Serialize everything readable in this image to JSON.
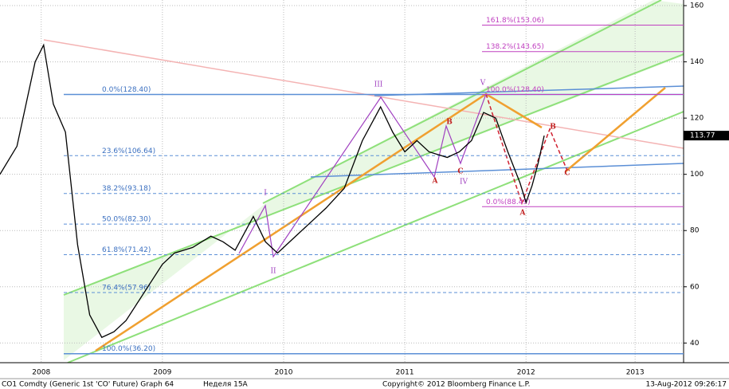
{
  "chart_data": {
    "type": "line",
    "x": [
      2008.16,
      2008.3,
      2008.45,
      2008.52,
      2008.6,
      2008.7,
      2008.8,
      2008.9,
      2009.0,
      2009.1,
      2009.2,
      2009.35,
      2009.5,
      2009.6,
      2009.75,
      2009.9,
      2010.0,
      2010.1,
      2010.25,
      2010.35,
      2010.45,
      2010.6,
      2010.7,
      2010.85,
      2011.0,
      2011.15,
      2011.3,
      2011.4,
      2011.5,
      2011.6,
      2011.7,
      2011.85,
      2011.95,
      2012.05,
      2012.15,
      2012.25,
      2012.35,
      2012.45,
      2012.5,
      2012.55,
      2012.6,
      2012.65
    ],
    "series": [
      {
        "color": "#000000",
        "values": [
          100,
          110,
          140,
          146,
          125,
          115,
          75,
          50,
          42,
          44,
          48,
          58,
          68,
          72,
          74,
          78,
          76,
          73,
          85,
          76,
          72,
          78,
          82,
          88,
          95,
          112,
          124,
          115,
          108,
          112,
          108,
          106,
          108,
          112,
          122,
          120,
          108,
          97,
          90,
          96,
          104,
          113.77
        ]
      }
    ],
    "last_price_label": "113.77",
    "xlim": [
      2008.16,
      2013.8
    ],
    "xticks": [
      {
        "value": 2008.5,
        "label": "2008"
      },
      {
        "value": 2009.5,
        "label": "2009"
      },
      {
        "value": 2010.5,
        "label": "2010"
      },
      {
        "value": 2011.5,
        "label": "2011"
      },
      {
        "value": 2012.5,
        "label": "2012"
      },
      {
        "value": 2013.4,
        "label": "2013"
      }
    ],
    "ylim": [
      33,
      162
    ],
    "yticks": [
      40,
      60,
      80,
      100,
      120,
      140,
      160
    ],
    "grid": true,
    "fib_left": [
      {
        "value": 128.4,
        "label": "0.0%(128.40)"
      },
      {
        "value": 106.64,
        "label": "23.6%(106.64)"
      },
      {
        "value": 93.18,
        "label": "38.2%(93.18)"
      },
      {
        "value": 82.3,
        "label": "50.0%(82.30)"
      },
      {
        "value": 71.42,
        "label": "61.8%(71.42)"
      },
      {
        "value": 57.96,
        "label": "76.4%(57.96)"
      },
      {
        "value": 36.2,
        "label": "100.0%(36.20)"
      }
    ],
    "fib_right": [
      {
        "value": 153.06,
        "label": "161.8%(153.06)"
      },
      {
        "value": 143.65,
        "label": "138.2%(143.65)"
      },
      {
        "value": 128.4,
        "label": "100.0%(128.40)"
      },
      {
        "value": 88.49,
        "label": "0.0%(88.49)"
      }
    ],
    "wave_labels": [
      "I",
      "II",
      "III",
      "IV",
      "V",
      "A",
      "B",
      "C",
      "A",
      "B",
      "C"
    ],
    "footer": [
      "CO1 Comdty (Generic 1st 'CO' Future) Graph 64",
      "Неделя 15А",
      "Copyright© 2012 Bloomberg Finance L.P.",
      "13-Aug-2012 09:26:17"
    ]
  }
}
